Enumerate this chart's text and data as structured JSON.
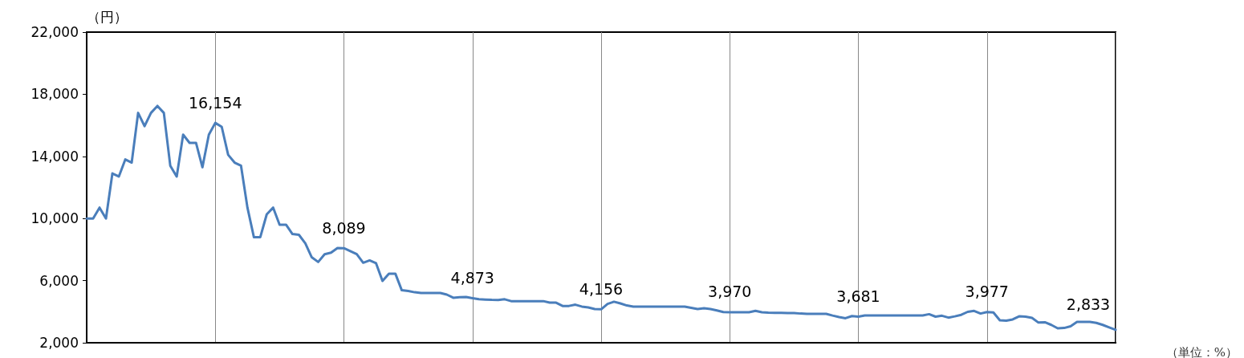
{
  "chart_data": {
    "type": "line",
    "ylabel": "（円）",
    "categories": [
      null,
      null,
      null,
      null,
      null,
      null,
      null,
      null,
      null,
      null,
      null,
      null,
      null,
      null,
      null,
      null,
      null,
      null,
      null,
      null,
      null,
      null,
      null,
      null,
      null,
      null,
      null,
      null,
      null,
      null,
      null,
      null,
      null,
      null,
      null,
      null,
      null,
      null,
      null,
      null,
      null,
      null,
      null,
      null,
      null,
      null,
      null,
      null,
      null,
      null,
      null,
      null,
      null,
      null,
      null,
      null,
      null,
      null,
      null,
      null,
      null,
      null,
      null,
      null,
      null,
      null,
      null,
      null,
      null,
      null,
      null,
      null,
      null,
      null,
      null,
      null,
      null,
      null,
      null,
      null,
      null,
      null,
      null,
      null,
      null,
      null,
      null,
      null,
      null,
      null,
      null,
      null,
      null,
      null,
      null,
      null,
      null,
      null,
      null,
      null,
      null,
      null,
      null,
      null,
      null,
      null,
      null,
      null,
      null,
      null,
      null,
      null,
      null,
      null,
      null,
      null,
      null,
      null,
      null,
      null,
      null,
      null,
      null,
      null,
      null,
      null,
      null,
      null,
      null,
      null,
      null,
      null,
      null,
      null,
      null,
      null,
      null,
      null,
      null,
      null,
      null,
      null,
      null,
      null,
      null,
      null,
      null,
      null,
      null,
      null,
      null,
      null,
      null,
      null,
      null,
      null,
      null,
      null,
      null,
      null,
      null
    ],
    "series": [
      {
        "color": "#4a7ebb",
        "values": [
          10000,
          10000,
          10700,
          10000,
          12900,
          12700,
          13800,
          13600,
          16800,
          15950,
          16800,
          17250,
          16800,
          13400,
          12700,
          15400,
          14870,
          14870,
          13300,
          15400,
          16154,
          15900,
          14100,
          13600,
          13400,
          10700,
          8800,
          8800,
          10270,
          10700,
          9600,
          9600,
          9000,
          8950,
          8400,
          7500,
          7200,
          7700,
          7800,
          8100,
          8089,
          7900,
          7700,
          7150,
          7300,
          7120,
          5980,
          6450,
          6450,
          5380,
          5330,
          5250,
          5200,
          5200,
          5200,
          5200,
          5100,
          4900,
          4930,
          4950,
          4873,
          4800,
          4780,
          4760,
          4750,
          4800,
          4680,
          4680,
          4680,
          4680,
          4680,
          4680,
          4580,
          4580,
          4370,
          4370,
          4450,
          4330,
          4270,
          4170,
          4156,
          4500,
          4640,
          4530,
          4400,
          4330,
          4330,
          4330,
          4330,
          4330,
          4330,
          4330,
          4330,
          4330,
          4250,
          4170,
          4220,
          4170,
          4080,
          3980,
          3970,
          3960,
          3960,
          3960,
          4050,
          3960,
          3940,
          3930,
          3920,
          3910,
          3910,
          3880,
          3860,
          3860,
          3860,
          3860,
          3750,
          3650,
          3580,
          3720,
          3681,
          3760,
          3760,
          3760,
          3760,
          3760,
          3760,
          3760,
          3760,
          3760,
          3760,
          3840,
          3680,
          3740,
          3620,
          3700,
          3800,
          3990,
          4050,
          3880,
          3977,
          3950,
          3450,
          3420,
          3500,
          3700,
          3680,
          3600,
          3300,
          3320,
          3150,
          2930,
          2950,
          3060,
          3340,
          3340,
          3340,
          3280,
          3150,
          2990,
          2833
        ],
        "value_labels": [
          null,
          null,
          null,
          null,
          null,
          null,
          null,
          null,
          null,
          null,
          null,
          null,
          null,
          null,
          null,
          null,
          null,
          null,
          null,
          null,
          "16,154",
          null,
          null,
          null,
          null,
          null,
          null,
          null,
          null,
          null,
          null,
          null,
          null,
          null,
          null,
          null,
          null,
          null,
          null,
          null,
          "8,089",
          null,
          null,
          null,
          null,
          null,
          null,
          null,
          null,
          null,
          null,
          null,
          null,
          null,
          null,
          null,
          null,
          null,
          null,
          null,
          "4,873",
          null,
          null,
          null,
          null,
          null,
          null,
          null,
          null,
          null,
          null,
          null,
          null,
          null,
          null,
          null,
          null,
          null,
          null,
          null,
          "4,156",
          null,
          null,
          null,
          null,
          null,
          null,
          null,
          null,
          null,
          null,
          null,
          null,
          null,
          null,
          null,
          null,
          null,
          null,
          null,
          "3,970",
          null,
          null,
          null,
          null,
          null,
          null,
          null,
          null,
          null,
          null,
          null,
          null,
          null,
          null,
          null,
          null,
          null,
          null,
          null,
          "3,681",
          null,
          null,
          null,
          null,
          null,
          null,
          null,
          null,
          null,
          null,
          null,
          null,
          null,
          null,
          null,
          null,
          null,
          null,
          null,
          "3,977",
          null,
          null,
          null,
          null,
          null,
          null,
          null,
          null,
          null,
          null,
          null,
          null,
          null,
          null,
          null,
          null,
          null,
          null,
          null,
          "2,833"
        ]
      }
    ],
    "ylim": [
      2000,
      22000
    ],
    "yticks": [
      {
        "value": 2000,
        "label": "2,000"
      },
      {
        "value": 6000,
        "label": "6,000"
      },
      {
        "value": 10000,
        "label": "10,000"
      },
      {
        "value": 14000,
        "label": "14,000"
      },
      {
        "value": 18000,
        "label": "18,000"
      },
      {
        "value": 22000,
        "label": "22,000"
      }
    ],
    "tick_labels": "y",
    "grid": "x",
    "marker": "none",
    "line_style": "solid",
    "annotations": [
      "（単位：%）"
    ]
  }
}
